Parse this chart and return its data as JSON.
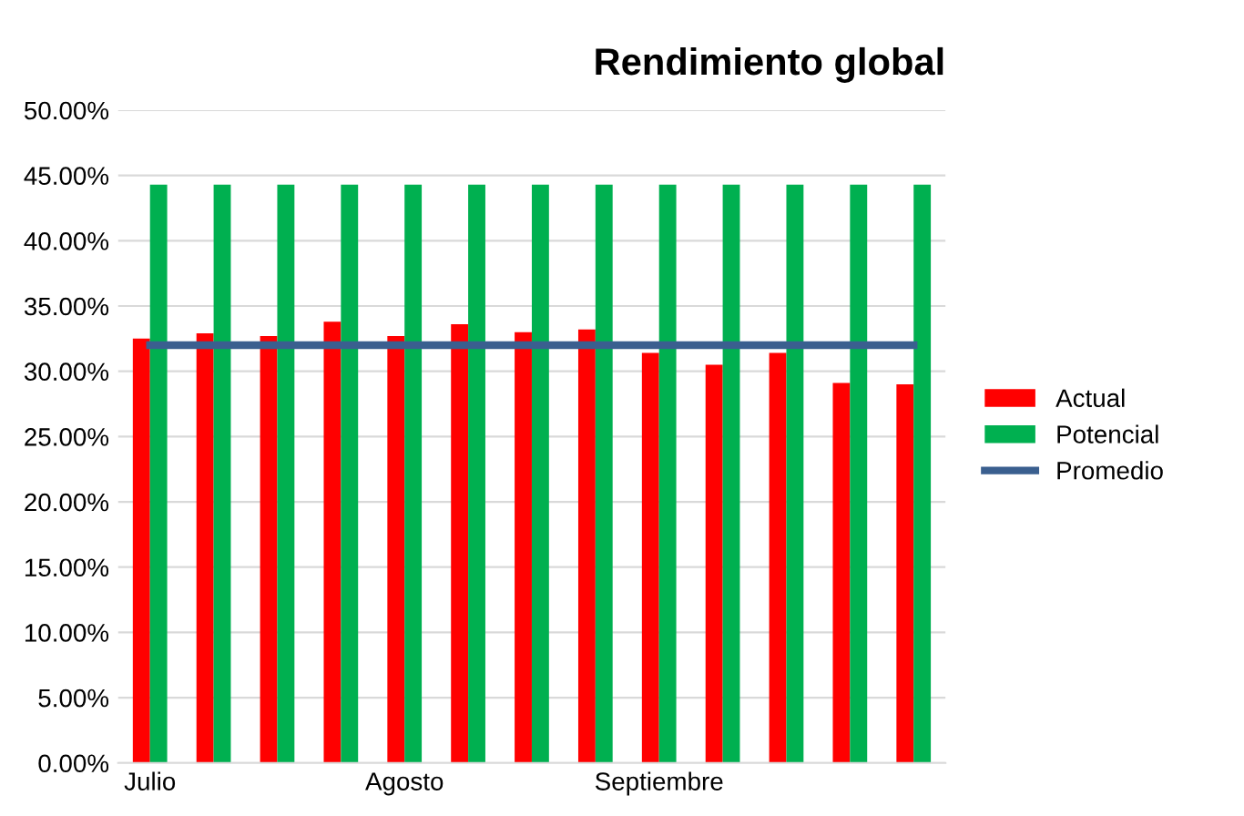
{
  "chart_data": {
    "type": "bar",
    "title": "Rendimiento global",
    "categories": [
      "Julio",
      null,
      null,
      null,
      "Agosto",
      null,
      null,
      null,
      "Septiembre",
      null,
      null,
      null,
      null
    ],
    "series": [
      {
        "name": "Actual",
        "color": "#ff0000",
        "values": [
          32.5,
          32.9,
          32.7,
          33.8,
          32.7,
          33.6,
          33.0,
          33.2,
          31.4,
          30.5,
          31.4,
          29.1,
          29.0
        ]
      },
      {
        "name": "Potencial",
        "color": "#00b050",
        "values": [
          44.3,
          44.3,
          44.3,
          44.3,
          44.3,
          44.3,
          44.3,
          44.3,
          44.3,
          44.3,
          44.3,
          44.3,
          44.3
        ]
      },
      {
        "name": "Promedio",
        "color": "#3a5f8f",
        "type": "line",
        "values": [
          32.0,
          32.0,
          32.0,
          32.0,
          32.0,
          32.0,
          32.0,
          32.0,
          32.0,
          32.0,
          32.0,
          32.0,
          32.0
        ]
      }
    ],
    "ylim": [
      0,
      50
    ],
    "yticks": [
      {
        "value": 0,
        "label": "0.00%"
      },
      {
        "value": 5,
        "label": "5.00%"
      },
      {
        "value": 10,
        "label": "10.00%"
      },
      {
        "value": 15,
        "label": "15.00%"
      },
      {
        "value": 20,
        "label": "20.00%"
      },
      {
        "value": 25,
        "label": "25.00%"
      },
      {
        "value": 30,
        "label": "30.00%"
      },
      {
        "value": 35,
        "label": "35.00%"
      },
      {
        "value": 40,
        "label": "40.00%"
      },
      {
        "value": 45,
        "label": "45.00%"
      },
      {
        "value": 50,
        "label": "50.00%"
      }
    ],
    "grid": "y",
    "legend": "right",
    "marker": "none",
    "line_style": "solid"
  }
}
